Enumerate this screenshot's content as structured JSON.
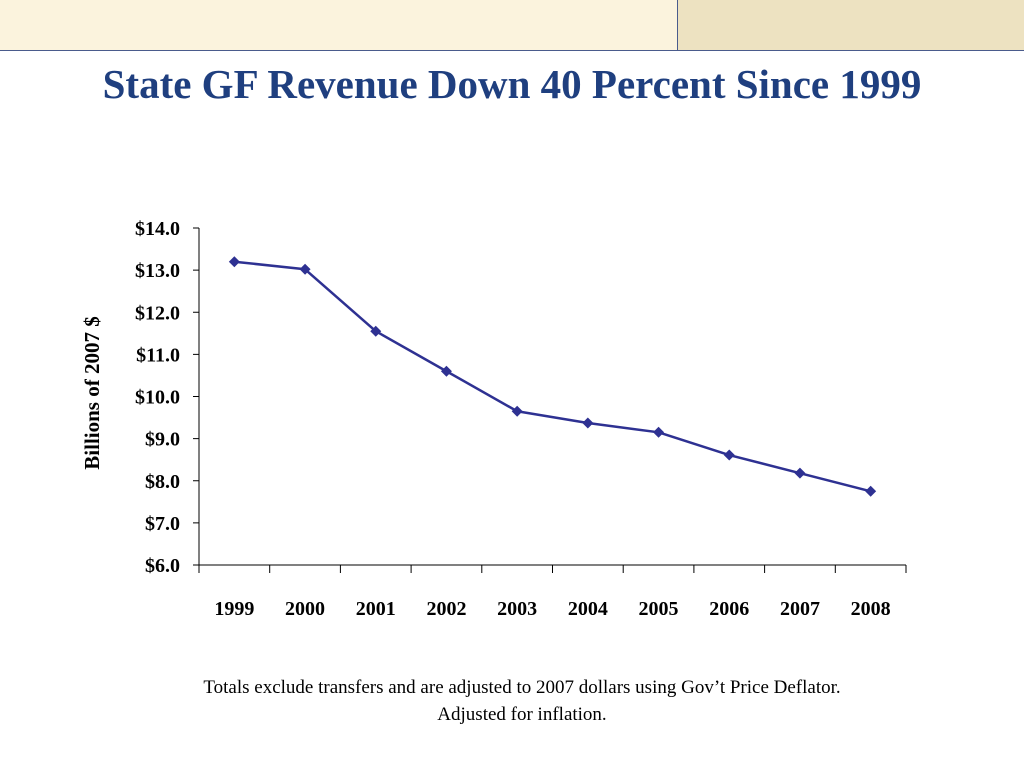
{
  "slide": {
    "title": "State GF Revenue Down 40 Percent Since 1999",
    "footnote_line1": "Totals exclude transfers and are adjusted to 2007 dollars using Gov’t Price Deflator.",
    "footnote_line2": "Adjusted for inflation."
  },
  "colors": {
    "title": "#1f3f7f",
    "series": "#2e3192",
    "band_left": "#fbf3dd",
    "band_right": "#ede2c1",
    "band_line": "#4a5b8c"
  },
  "chart_data": {
    "type": "line",
    "ylabel": "Billions of 2007 $",
    "categories": [
      "1999",
      "2000",
      "2001",
      "2002",
      "2003",
      "2004",
      "2005",
      "2006",
      "2007",
      "2008"
    ],
    "series": [
      {
        "values": [
          13.2,
          13.02,
          11.55,
          10.6,
          9.65,
          9.37,
          9.15,
          8.61,
          8.18,
          7.75
        ],
        "marker": "diamond"
      }
    ],
    "ylim": [
      6.0,
      14.0
    ],
    "yticks": [
      6,
      7,
      8,
      9,
      10,
      11,
      12,
      13,
      14
    ],
    "ytick_labels": [
      "$6.0",
      "$7.0",
      "$8.0",
      "$9.0",
      "$10.0",
      "$11.0",
      "$12.0",
      "$13.0",
      "$14.0"
    ],
    "grid": false,
    "legend": "none"
  }
}
